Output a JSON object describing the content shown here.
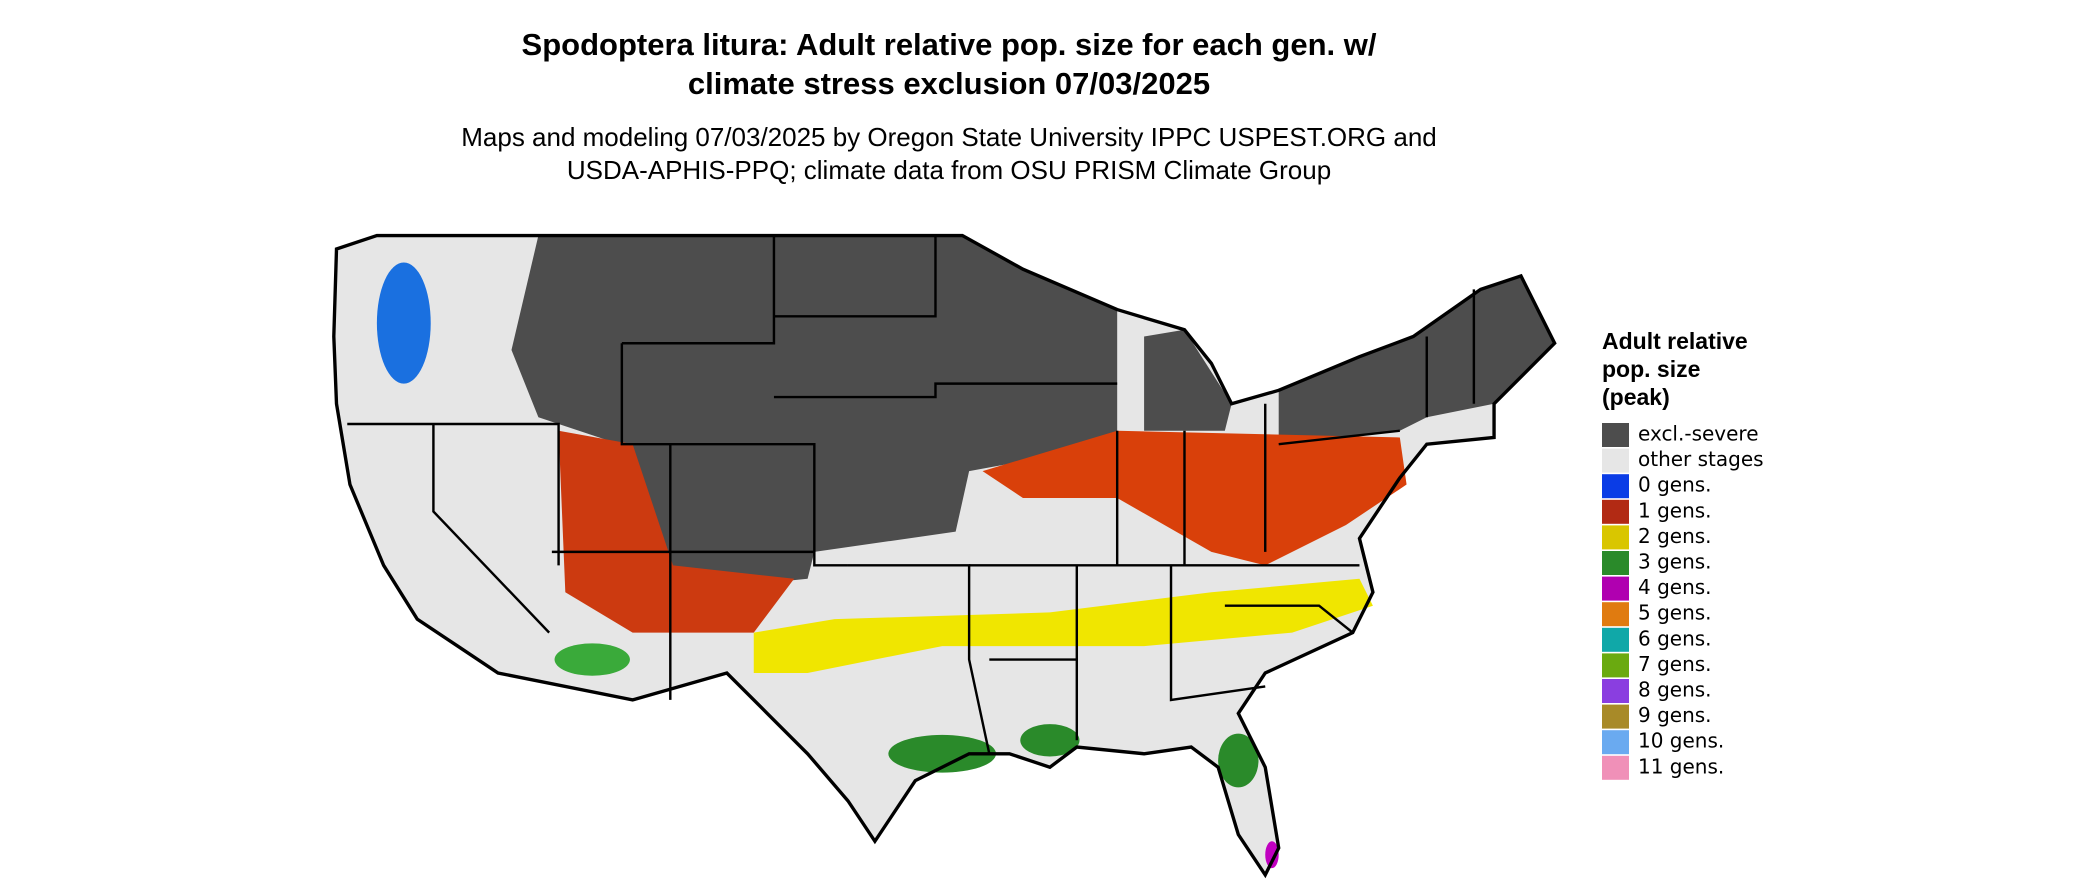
{
  "title": [
    "Spodoptera litura: Adult relative pop. size for each gen. w/",
    "climate stress exclusion 07/03/2025"
  ],
  "subtitle": [
    "Maps and modeling 07/03/2025 by Oregon State University IPPC USPEST.ORG and",
    "USDA-APHIS-PPQ; climate data from OSU PRISM Climate Group"
  ],
  "legend": {
    "title": [
      "Adult relative",
      "pop. size",
      "(peak)"
    ],
    "items": [
      {
        "label": "excl.-severe",
        "color": "#4d4d4d"
      },
      {
        "label": "other stages",
        "color": "#e6e6e6"
      },
      {
        "label": "0 gens.",
        "color": "#0a3ce6"
      },
      {
        "label": "1 gens.",
        "color": "#b22a14"
      },
      {
        "label": "2 gens.",
        "color": "#d9c600"
      },
      {
        "label": "3 gens.",
        "color": "#2a8a2a"
      },
      {
        "label": "4 gens.",
        "color": "#b000b0"
      },
      {
        "label": "5 gens.",
        "color": "#e07b10"
      },
      {
        "label": "6 gens.",
        "color": "#10a8a8"
      },
      {
        "label": "7 gens.",
        "color": "#6aaa10"
      },
      {
        "label": "8 gens.",
        "color": "#8a3ee0"
      },
      {
        "label": "9 gens.",
        "color": "#a88a28"
      },
      {
        "label": "10 gens.",
        "color": "#6aaaf0"
      },
      {
        "label": "11 gens.",
        "color": "#f090b8"
      }
    ]
  }
}
